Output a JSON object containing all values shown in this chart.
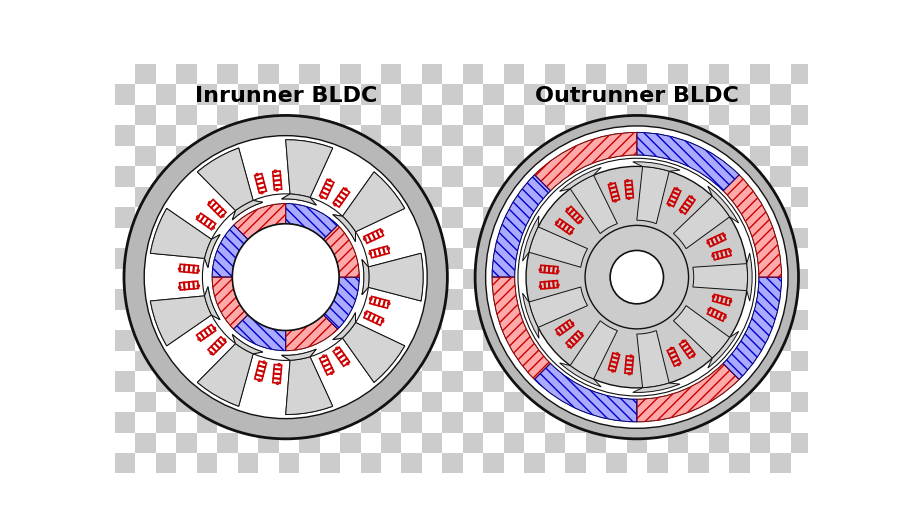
{
  "title_left": "Inrunner BLDC",
  "title_right": "Outrunner BLDC",
  "title_fontsize": 16,
  "title_fontweight": "bold",
  "bg_white": "#ffffff",
  "gray_outer": "#b8b8b8",
  "gray_mid": "#cccccc",
  "gray_stator": "#d4d4d4",
  "gray_light": "#e8e8e8",
  "coil_color": "#cc0000",
  "magnet_red_face": "#ffaaaa",
  "magnet_blue_face": "#aaaaff",
  "magnet_red_hatch": "#cc0000",
  "magnet_blue_hatch": "#0000cc",
  "outline_color": "#111111",
  "white": "#ffffff",
  "n_stator_teeth_in": 9,
  "n_rotor_poles_in": 8,
  "n_stator_teeth_out": 9,
  "n_rotor_poles_out": 8,
  "fig_width": 9.0,
  "fig_height": 5.32,
  "dpi": 100
}
